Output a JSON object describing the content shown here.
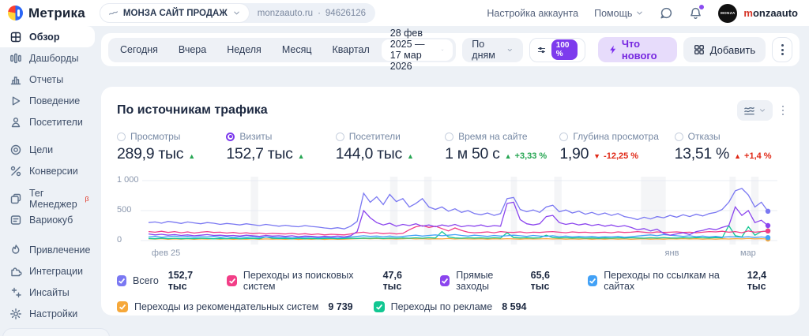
{
  "header": {
    "logo_text": "Метрика",
    "counter": {
      "name": "МОНЗА САЙТ ПРОДАЖ",
      "domain": "monzaauto.ru",
      "sep": "·",
      "id": "94626126"
    },
    "account_settings": "Настройка аккаунта",
    "help": "Помощь",
    "user": {
      "avatar_text": "MONZA",
      "name_accent": "m",
      "name_rest": "onzaauto"
    }
  },
  "sidebar": {
    "items": [
      {
        "label": "Обзор"
      },
      {
        "label": "Дашборды"
      },
      {
        "label": "Отчеты"
      },
      {
        "label": "Поведение"
      },
      {
        "label": "Посетители"
      },
      {
        "label": "Цели"
      },
      {
        "label": "Конверсии"
      },
      {
        "label": "Тег Менеджер",
        "badge": "β"
      },
      {
        "label": "Вариокуб"
      },
      {
        "label": "Привлечение"
      },
      {
        "label": "Интеграции"
      },
      {
        "label": "Инсайты"
      },
      {
        "label": "Настройки"
      }
    ]
  },
  "toolbar": {
    "periods": [
      "Сегодня",
      "Вчера",
      "Неделя",
      "Месяц",
      "Квартал"
    ],
    "date_range": "28 фев 2025 — 17 мар 2026",
    "granularity": "По дням",
    "sampling": "100 %",
    "whats_new": "Что нового",
    "add": "Добавить"
  },
  "card": {
    "title": "По источникам трафика",
    "metrics": [
      {
        "label": "Просмотры",
        "value": "289,9 тыс",
        "trend_char": "▲",
        "delta": ""
      },
      {
        "label": "Визиты",
        "value": "152,7 тыс",
        "trend_char": "▲",
        "delta": ""
      },
      {
        "label": "Посетители",
        "value": "144,0 тыс",
        "trend_char": "▲",
        "delta": ""
      },
      {
        "label": "Время на сайте",
        "value": "1 м 50 с",
        "trend_char": "▲",
        "delta": "+3,33 %"
      },
      {
        "label": "Глубина просмотра",
        "value": "1,90",
        "trend_char": "▼",
        "delta": "-12,25 %"
      },
      {
        "label": "Отказы",
        "value": "13,51 %",
        "trend_char": "▲",
        "delta": "+1,4 %"
      }
    ]
  },
  "chart_data": {
    "type": "line",
    "title": "По источникам трафика",
    "ylim": [
      0,
      1000
    ],
    "y_ticks": [
      1000,
      500,
      0
    ],
    "y_tick_labels": [
      "1 000",
      "500",
      "0"
    ],
    "x_ticks": [
      {
        "label": "фев 25",
        "pos": 0.005
      },
      {
        "label": "янв",
        "pos": 0.845
      },
      {
        "label": "мар",
        "pos": 0.968
      }
    ],
    "bands": [
      {
        "x": 0.165,
        "w": 0.012
      },
      {
        "x": 0.39,
        "w": 0.012
      },
      {
        "x": 0.445,
        "w": 0.012
      },
      {
        "x": 0.585,
        "w": 0.01
      },
      {
        "x": 0.655,
        "w": 0.012
      },
      {
        "x": 0.795,
        "w": 0.04
      },
      {
        "x": 0.938,
        "w": 0.01
      },
      {
        "x": 0.973,
        "w": 0.012
      }
    ],
    "series": [
      {
        "name": "Всего",
        "total": "152,7 тыс",
        "color": "#7a78f2",
        "values": [
          300,
          310,
          290,
          320,
          305,
          285,
          310,
          295,
          280,
          300,
          290,
          270,
          285,
          275,
          260,
          280,
          265,
          250,
          270,
          255,
          240,
          255,
          240,
          230,
          250,
          235,
          225,
          210,
          200,
          215,
          195,
          240,
          320,
          790,
          640,
          730,
          600,
          770,
          650,
          700,
          560,
          620,
          700,
          560,
          520,
          560,
          490,
          530,
          470,
          500,
          450,
          430,
          460,
          420,
          450,
          700,
          720,
          520,
          480,
          510,
          470,
          560,
          590,
          480,
          510,
          460,
          490,
          440,
          470,
          430,
          460,
          420,
          450,
          400,
          380,
          350,
          390,
          360,
          400,
          380,
          420,
          390,
          430,
          400,
          440,
          410,
          450,
          470,
          520,
          640,
          830,
          870,
          760,
          560,
          640,
          490
        ]
      },
      {
        "name": "Переходы из поисковых систем",
        "total": "47,6 тыс",
        "color": "#f23e87",
        "values": [
          150,
          140,
          155,
          135,
          150,
          130,
          145,
          125,
          140,
          150,
          135,
          140,
          125,
          135,
          120,
          130,
          115,
          125,
          110,
          120,
          115,
          110,
          120,
          105,
          115,
          100,
          110,
          95,
          105,
          100,
          95,
          110,
          130,
          140,
          120,
          130,
          115,
          125,
          110,
          120,
          180,
          230,
          250,
          220,
          240,
          200,
          160,
          210,
          170,
          140,
          130,
          135,
          145,
          130,
          150,
          140,
          135,
          145,
          130,
          140,
          135,
          145,
          150,
          140,
          130,
          145,
          135,
          140,
          130,
          135,
          140,
          130,
          145,
          135,
          140,
          150,
          140,
          130,
          145,
          135,
          140,
          145,
          135,
          140,
          130,
          140,
          150,
          145,
          155,
          140,
          150,
          130,
          160,
          140,
          150,
          160
        ]
      },
      {
        "name": "Прямые заходы",
        "total": "65,6 тыс",
        "color": "#8b45ee",
        "values": [
          110,
          95,
          105,
          90,
          100,
          85,
          95,
          80,
          90,
          100,
          85,
          90,
          80,
          85,
          75,
          90,
          80,
          70,
          85,
          75,
          80,
          70,
          80,
          65,
          75,
          70,
          60,
          70,
          65,
          75,
          60,
          80,
          150,
          500,
          380,
          300,
          260,
          290,
          240,
          270,
          250,
          280,
          240,
          260,
          230,
          260,
          240,
          270,
          230,
          250,
          240,
          260,
          230,
          250,
          240,
          620,
          640,
          350,
          280,
          260,
          280,
          400,
          420,
          300,
          270,
          290,
          260,
          280,
          250,
          270,
          240,
          260,
          230,
          250,
          220,
          180,
          200,
          160,
          190,
          120,
          90,
          110,
          130,
          100,
          150,
          170,
          200,
          180,
          220,
          250,
          560,
          420,
          500,
          300,
          340,
          250
        ]
      },
      {
        "name": "Переходы по ссылкам на сайтах",
        "total": "12,4 тыс",
        "color": "#42a1f6",
        "values": [
          60,
          70,
          55,
          65,
          75,
          60,
          70,
          55,
          65,
          60,
          70,
          55,
          65,
          50,
          60,
          55,
          65,
          50,
          60,
          55,
          50,
          55,
          45,
          55,
          50,
          60,
          45,
          55,
          50,
          45,
          50,
          60,
          70,
          80,
          70,
          75,
          65,
          75,
          60,
          70,
          80,
          90,
          75,
          85,
          95,
          80,
          90,
          100,
          85,
          75,
          90,
          80,
          70,
          85,
          75,
          80,
          90,
          80,
          70,
          85,
          75,
          70,
          80,
          65,
          75,
          60,
          70,
          60,
          70,
          55,
          65,
          60,
          70,
          55,
          65,
          75,
          85,
          95,
          80,
          100,
          90,
          80,
          70,
          80,
          65,
          75,
          60,
          70,
          55,
          65,
          60,
          55,
          65,
          50,
          60,
          50
        ]
      },
      {
        "name": "Переходы из рекомендательных систем",
        "total": "9 739",
        "color": "#f6a83a",
        "values": [
          30,
          25,
          32,
          22,
          28,
          24,
          30,
          22,
          27,
          25,
          30,
          24,
          28,
          22,
          26,
          24,
          30,
          22,
          28,
          24,
          26,
          22,
          28,
          20,
          26,
          22,
          28,
          20,
          26,
          22,
          24,
          28,
          32,
          36,
          30,
          34,
          28,
          32,
          26,
          30,
          34,
          28,
          32,
          26,
          30,
          28,
          34,
          26,
          32,
          28,
          26,
          30,
          24,
          30,
          26,
          32,
          28,
          24,
          30,
          26,
          28,
          32,
          26,
          30,
          24,
          28,
          24,
          30,
          22,
          28,
          24,
          30,
          24,
          28,
          22,
          26,
          30,
          24,
          28,
          24,
          30,
          26,
          32,
          26,
          30,
          24,
          28,
          24,
          30,
          26,
          32,
          28,
          34,
          28,
          32,
          25
        ]
      },
      {
        "name": "Переходы по рекламе",
        "total": "8 594",
        "color": "#12c792",
        "values": [
          35,
          30,
          40,
          32,
          38,
          30,
          36,
          32,
          38,
          34,
          30,
          36,
          32,
          38,
          30,
          34,
          36,
          32,
          60,
          38,
          34,
          36,
          30,
          38,
          32,
          36,
          30,
          34,
          38,
          32,
          36,
          40,
          36,
          42,
          38,
          44,
          36,
          42,
          38,
          44,
          40,
          46,
          40,
          48,
          42,
          150,
          60,
          44,
          40,
          46,
          42,
          46,
          40,
          48,
          42,
          130,
          50,
          44,
          48,
          42,
          46,
          90,
          50,
          44,
          48,
          42,
          46,
          40,
          44,
          38,
          44,
          40,
          46,
          42,
          48,
          44,
          40,
          46,
          42,
          48,
          44,
          42,
          48,
          44,
          50,
          46,
          44,
          50,
          46,
          250,
          80,
          60,
          230,
          90,
          150,
          160
        ]
      }
    ]
  }
}
